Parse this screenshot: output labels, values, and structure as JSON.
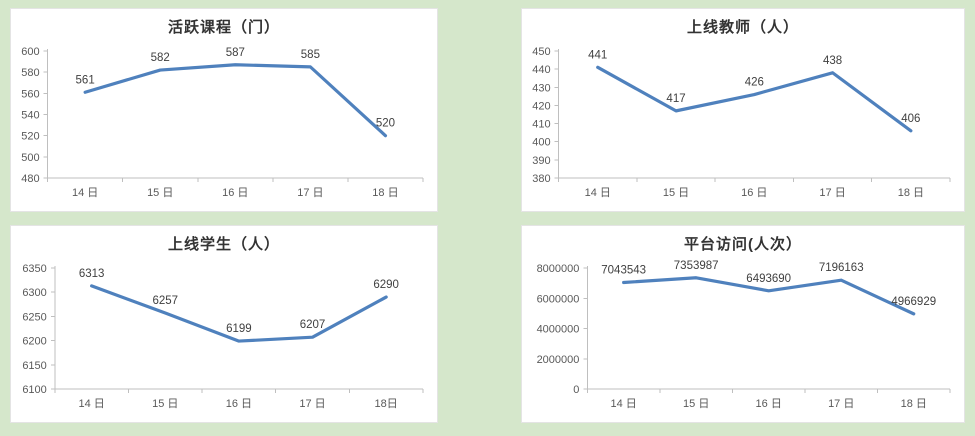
{
  "page": {
    "background_color": "#d5e7cb",
    "panel_color": "#ffffff",
    "line_color": "#4f81bd",
    "axis_color": "#bfbfbf",
    "tick_label_color": "#595959",
    "data_label_color": "#404040",
    "title_color": "#333333"
  },
  "chart_data": [
    {
      "id": "active-courses",
      "type": "line",
      "title": "活跃课程（门）",
      "categories": [
        "14 日",
        "15 日",
        "16 日",
        "17 日",
        "18 日"
      ],
      "values": [
        561,
        582,
        587,
        585,
        520
      ],
      "ylim": [
        480,
        600
      ],
      "yticks": [
        480,
        500,
        520,
        540,
        560,
        580,
        600
      ],
      "grid": false,
      "legend": "none",
      "data_labels": true
    },
    {
      "id": "online-teachers",
      "type": "line",
      "title": "上线教师（人）",
      "categories": [
        "14 日",
        "15 日",
        "16 日",
        "17 日",
        "18 日"
      ],
      "values": [
        441,
        417,
        426,
        438,
        406
      ],
      "ylim": [
        380,
        450
      ],
      "yticks": [
        380,
        390,
        400,
        410,
        420,
        430,
        440,
        450
      ],
      "grid": false,
      "legend": "none",
      "data_labels": true
    },
    {
      "id": "online-students",
      "type": "line",
      "title": "上线学生（人）",
      "categories": [
        "14 日",
        "15 日",
        "16 日",
        "17 日",
        "18日"
      ],
      "values": [
        6313,
        6257,
        6199,
        6207,
        6290
      ],
      "ylim": [
        6100,
        6350
      ],
      "yticks": [
        6100,
        6150,
        6200,
        6250,
        6300,
        6350
      ],
      "grid": false,
      "legend": "none",
      "data_labels": true
    },
    {
      "id": "platform-visits",
      "type": "line",
      "title": "平台访问(人次）",
      "categories": [
        "14 日",
        "15 日",
        "16 日",
        "17 日",
        "18 日"
      ],
      "values": [
        7043543,
        7353987,
        6493690,
        7196163,
        4966929
      ],
      "ylim": [
        0,
        8000000
      ],
      "yticks": [
        0,
        2000000,
        4000000,
        6000000,
        8000000
      ],
      "grid": false,
      "legend": "none",
      "data_labels": true
    }
  ]
}
